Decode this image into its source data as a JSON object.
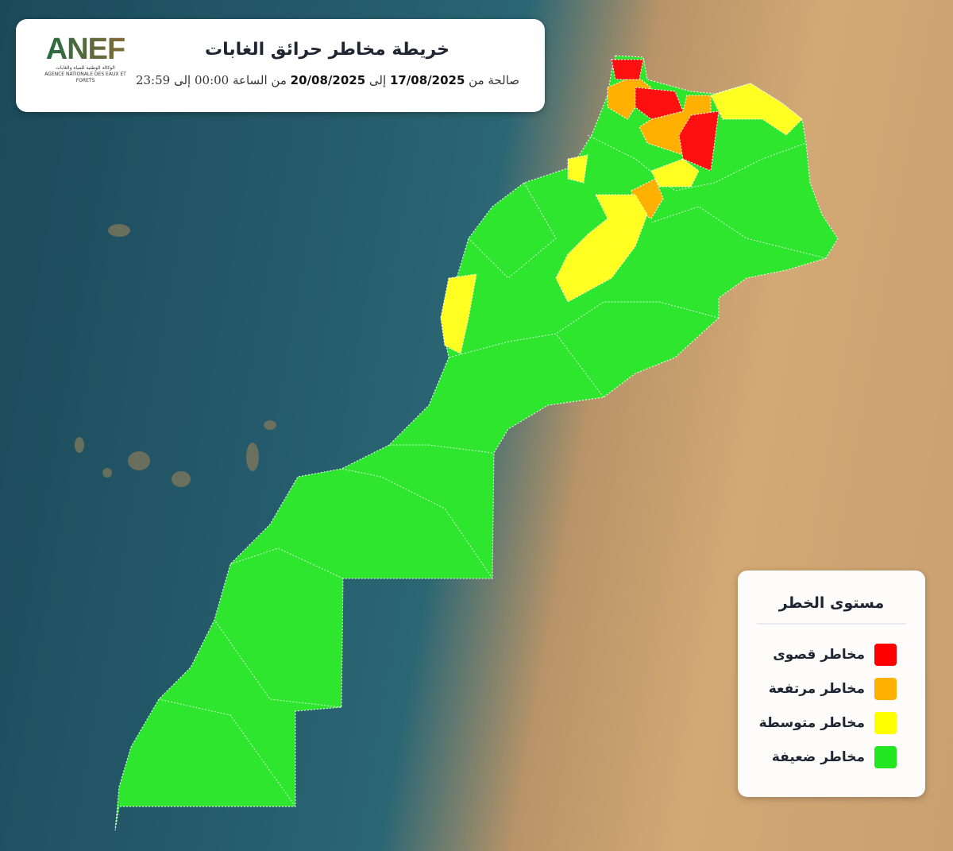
{
  "header": {
    "logo_text": "ANEF",
    "logo_subtitle_ar": "الوكالة الوطنية للمياه والغابات",
    "logo_subtitle_fr": "AGENCE NATIONALE DES EAUX ET FORETS",
    "title": "خريطة مخاطر حرائق الغابات",
    "validity_prefix": "صالحة من",
    "date_from": "17/08/2025",
    "to_word": "إلى",
    "date_to": "20/08/2025",
    "time_text": "من الساعة 00:00 إلى 23:59"
  },
  "legend": {
    "title": "مستوى الخطر",
    "items": [
      {
        "label": "مخاطر قصوى",
        "color": "#ff0000"
      },
      {
        "label": "مخاطر مرتفعة",
        "color": "#ffb000"
      },
      {
        "label": "مخاطر متوسطة",
        "color": "#ffff00"
      },
      {
        "label": "مخاطر ضعيفة",
        "color": "#22e622"
      }
    ]
  }
}
